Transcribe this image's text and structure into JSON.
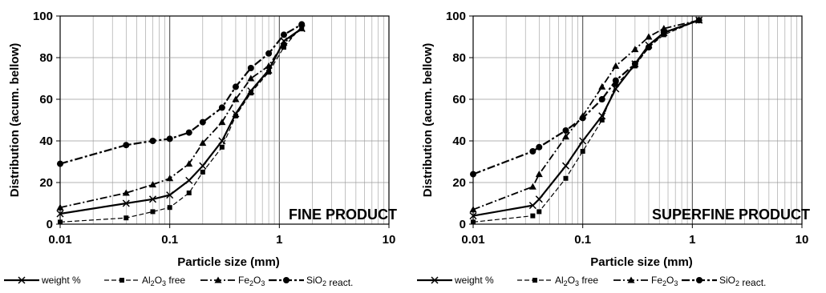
{
  "chart_data": [
    {
      "type": "line",
      "xscale": "log",
      "xlabel": "Particle size (mm)",
      "ylabel": "Distribution (acum. bellow)",
      "xlim": [
        0.01,
        10
      ],
      "ylim": [
        0,
        100
      ],
      "xticks": [
        "0.01",
        "0.1",
        "1",
        "10"
      ],
      "yticks": [
        "0",
        "20",
        "40",
        "60",
        "80",
        "100"
      ],
      "annotation": "FINE PRODUCT",
      "grid": true,
      "legend_position": "bottom",
      "series": [
        {
          "name": "weight %",
          "x": [
            0.01,
            0.04,
            0.07,
            0.1,
            0.15,
            0.2,
            0.3,
            0.4,
            0.55,
            0.8,
            1.1,
            1.6
          ],
          "y": [
            5,
            10,
            12,
            14,
            21,
            28,
            40,
            53,
            64,
            74,
            88,
            94
          ]
        },
        {
          "name": "Al2O3 free",
          "x": [
            0.01,
            0.04,
            0.07,
            0.1,
            0.15,
            0.2,
            0.3,
            0.4,
            0.55,
            0.8,
            1.1,
            1.6
          ],
          "y": [
            1,
            3,
            6,
            8,
            15,
            25,
            37,
            52,
            63,
            73,
            85,
            95
          ]
        },
        {
          "name": "Fe2O3",
          "x": [
            0.01,
            0.04,
            0.07,
            0.1,
            0.15,
            0.2,
            0.3,
            0.4,
            0.55,
            0.8,
            1.1,
            1.6
          ],
          "y": [
            8,
            15,
            19,
            22,
            29,
            39,
            49,
            60,
            70,
            76,
            87,
            94
          ]
        },
        {
          "name": "SiO2 react.",
          "x": [
            0.01,
            0.04,
            0.07,
            0.1,
            0.15,
            0.2,
            0.3,
            0.4,
            0.55,
            0.8,
            1.1,
            1.6
          ],
          "y": [
            29,
            38,
            40,
            41,
            44,
            49,
            56,
            66,
            75,
            82,
            91,
            96
          ]
        }
      ]
    },
    {
      "type": "line",
      "xscale": "log",
      "xlabel": "Particle size (mm)",
      "ylabel": "Distribution (acum. bellow)",
      "xlim": [
        0.01,
        10
      ],
      "ylim": [
        0,
        100
      ],
      "xticks": [
        "0.01",
        "0.1",
        "1",
        "10"
      ],
      "yticks": [
        "0",
        "20",
        "40",
        "60",
        "80",
        "100"
      ],
      "annotation": "SUPERFINE PRODUCT",
      "grid": true,
      "legend_position": "bottom",
      "series": [
        {
          "name": "weight %",
          "x": [
            0.01,
            0.035,
            0.04,
            0.07,
            0.1,
            0.15,
            0.2,
            0.3,
            0.4,
            0.55,
            1.15
          ],
          "y": [
            4,
            9,
            12,
            28,
            40,
            52,
            65,
            77,
            86,
            92,
            98
          ]
        },
        {
          "name": "Al2O3 free",
          "x": [
            0.01,
            0.035,
            0.04,
            0.07,
            0.1,
            0.15,
            0.2,
            0.3,
            0.4,
            0.55,
            1.15
          ],
          "y": [
            1,
            4,
            6,
            22,
            35,
            50,
            67,
            76,
            85,
            91,
            98
          ]
        },
        {
          "name": "Fe2O3",
          "x": [
            0.01,
            0.035,
            0.04,
            0.07,
            0.1,
            0.15,
            0.2,
            0.3,
            0.4,
            0.55,
            1.15
          ],
          "y": [
            7,
            18,
            24,
            42,
            52,
            66,
            76,
            84,
            90,
            94,
            98
          ]
        },
        {
          "name": "SiO2 react.",
          "x": [
            0.01,
            0.035,
            0.04,
            0.07,
            0.1,
            0.15,
            0.2,
            0.3,
            0.4,
            0.55,
            1.15
          ],
          "y": [
            24,
            35,
            37,
            45,
            51,
            60,
            69,
            77,
            85,
            92,
            98
          ]
        }
      ]
    }
  ],
  "legend": {
    "items": [
      {
        "id": "weight",
        "prefix": "weight %",
        "sub": "",
        "suffix": "",
        "icon": "x-marker-icon"
      },
      {
        "id": "al2o3",
        "prefix": "Al",
        "sub": "2",
        "mid": "O",
        "sub2": "3",
        "suffix": " free",
        "icon": "square-marker-icon"
      },
      {
        "id": "fe2o3",
        "prefix": "Fe",
        "sub": "2",
        "mid": "O",
        "sub2": "3",
        "suffix": "",
        "icon": "triangle-marker-icon"
      },
      {
        "id": "sio2",
        "prefix": "SiO",
        "sub": "2",
        "mid": "",
        "sub2": "",
        "suffix": " react.",
        "icon": "circle-marker-icon"
      }
    ]
  },
  "colors": {
    "ink": "#000000",
    "grid": "#9a9a9a"
  }
}
